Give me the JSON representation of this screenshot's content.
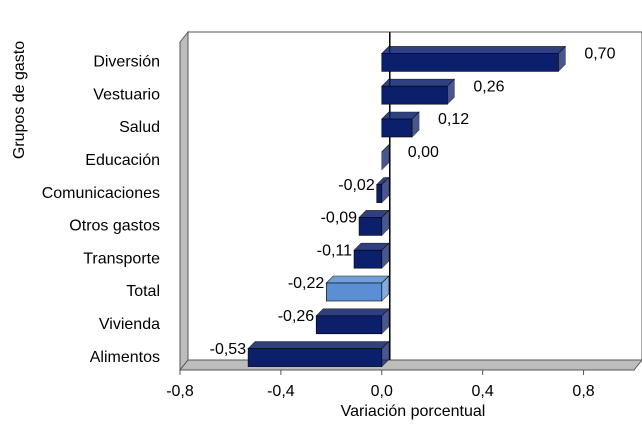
{
  "chart_data": {
    "type": "bar",
    "orientation": "horizontal",
    "x_axis_label": "Variación porcentual",
    "y_axis_label": "Grupos de gasto",
    "categories": [
      "Diversión",
      "Vestuario",
      "Salud",
      "Educación",
      "Comunicaciones",
      "Otros gastos",
      "Transporte",
      "Total",
      "Vivienda",
      "Alimentos"
    ],
    "values": [
      0.7,
      0.26,
      0.12,
      0.0,
      -0.02,
      -0.09,
      -0.11,
      -0.22,
      -0.26,
      -0.53
    ],
    "value_labels": [
      "0,70",
      "0,26",
      "0,12",
      "0,00",
      "-0,02",
      "-0,09",
      "-0,11",
      "-0,22",
      "-0,26",
      "-0,53"
    ],
    "colors": [
      "#0b1f6b",
      "#0b1f6b",
      "#0b1f6b",
      "#0b1f6b",
      "#0b1f6b",
      "#0b1f6b",
      "#0b1f6b",
      "#5b8fd3",
      "#0b1f6b",
      "#0b1f6b"
    ],
    "xlim": [
      -0.8,
      1.0
    ],
    "xticks": [
      {
        "value": -0.8,
        "label": "-0,8"
      },
      {
        "value": -0.4,
        "label": "-0,4"
      },
      {
        "value": 0,
        "label": "0,0"
      },
      {
        "value": 0.4,
        "label": "0,4"
      },
      {
        "value": 0.8,
        "label": "0,8"
      }
    ]
  }
}
